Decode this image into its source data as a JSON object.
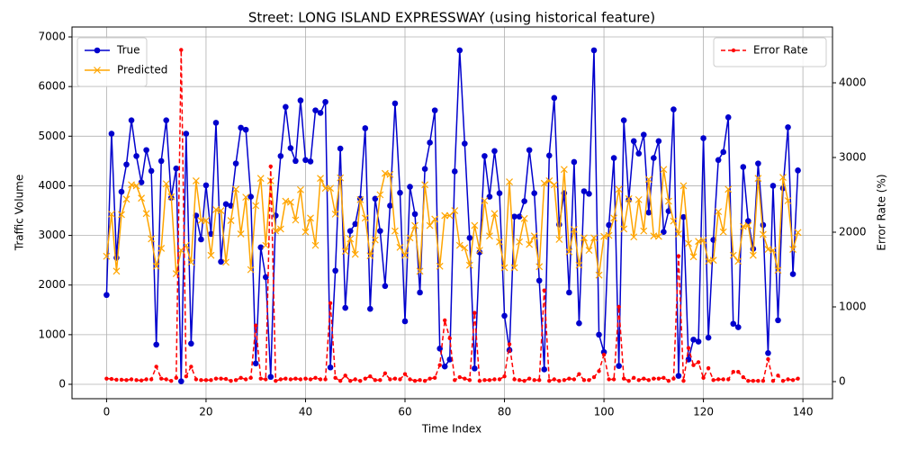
{
  "chart_data": {
    "type": "line",
    "title": "Street: LONG ISLAND EXPRESSWAY (using historical feature)",
    "x_label": "Time Index",
    "y_label": "Traffic Volume",
    "y2_label": "Error Rate (%)",
    "x": [
      0,
      1,
      2,
      3,
      4,
      5,
      6,
      7,
      8,
      9,
      10,
      11,
      12,
      13,
      14,
      15,
      16,
      17,
      18,
      19,
      20,
      21,
      22,
      23,
      24,
      25,
      26,
      27,
      28,
      29,
      30,
      31,
      32,
      33,
      34,
      35,
      36,
      37,
      38,
      39,
      40,
      41,
      42,
      43,
      44,
      45,
      46,
      47,
      48,
      49,
      50,
      51,
      52,
      53,
      54,
      55,
      56,
      57,
      58,
      59,
      60,
      61,
      62,
      63,
      64,
      65,
      66,
      67,
      68,
      69,
      70,
      71,
      72,
      73,
      74,
      75,
      76,
      77,
      78,
      79,
      80,
      81,
      82,
      83,
      84,
      85,
      86,
      87,
      88,
      89,
      90,
      91,
      92,
      93,
      94,
      95,
      96,
      97,
      98,
      99,
      100,
      101,
      102,
      103,
      104,
      105,
      106,
      107,
      108,
      109,
      110,
      111,
      112,
      113,
      114,
      115,
      116,
      117,
      118,
      119,
      120,
      121,
      122,
      123,
      124,
      125,
      126,
      127,
      128,
      129,
      130,
      131,
      132,
      133,
      134,
      135,
      136,
      137,
      138,
      139
    ],
    "series": [
      {
        "name": "True",
        "color": "#0000cd",
        "marker": "o",
        "linestyle": "solid",
        "values": [
          1800,
          5050,
          2550,
          3880,
          4430,
          5320,
          4600,
          4070,
          4720,
          4300,
          800,
          4500,
          5320,
          3760,
          4350,
          60,
          5050,
          820,
          3400,
          2920,
          4010,
          3030,
          5270,
          2470,
          3630,
          3600,
          4450,
          5170,
          5130,
          3780,
          420,
          2760,
          2160,
          150,
          3400,
          4600,
          5590,
          4760,
          4500,
          5720,
          4520,
          4490,
          5520,
          5470,
          5690,
          340,
          2290,
          4750,
          1540,
          3090,
          3230,
          3740,
          5160,
          1520,
          3740,
          3090,
          1980,
          3600,
          5660,
          3860,
          1270,
          3980,
          3430,
          1850,
          4340,
          4870,
          5520,
          720,
          360,
          500,
          4290,
          6730,
          4850,
          2950,
          320,
          2660,
          4600,
          3780,
          4700,
          3850,
          1380,
          690,
          3380,
          3380,
          3690,
          4720,
          3850,
          2090,
          300,
          4610,
          5770,
          3220,
          3850,
          1850,
          4480,
          1230,
          3890,
          3840,
          6730,
          1000,
          650,
          3210,
          4560,
          370,
          5320,
          3720,
          4900,
          4650,
          5030,
          3460,
          4560,
          4900,
          3070,
          3490,
          5540,
          170,
          3370,
          500,
          900,
          860,
          4960,
          940,
          2910,
          4520,
          4680,
          5380,
          1220,
          1150,
          4380,
          3290,
          2730,
          4450,
          3210,
          630,
          4000,
          1290,
          3950,
          5180,
          2220,
          4310
        ]
      },
      {
        "name": "Predicted",
        "color": "#ffa500",
        "marker": "x",
        "linestyle": "solid",
        "values": [
          2580,
          3430,
          2280,
          3420,
          3730,
          4020,
          4000,
          3750,
          3440,
          2930,
          2380,
          2740,
          4040,
          3780,
          2230,
          2700,
          2800,
          2460,
          4100,
          3300,
          3300,
          2600,
          3520,
          3500,
          2460,
          3300,
          3930,
          3030,
          3770,
          2310,
          3600,
          4150,
          2800,
          4100,
          3090,
          3130,
          3690,
          3670,
          3310,
          3920,
          3070,
          3350,
          2800,
          4150,
          3950,
          3950,
          3430,
          4160,
          2680,
          2930,
          2620,
          3720,
          3350,
          2590,
          2910,
          3820,
          4250,
          4230,
          3090,
          2760,
          2600,
          2950,
          3200,
          2280,
          4020,
          3200,
          3330,
          2380,
          3400,
          3400,
          3500,
          2800,
          2750,
          2400,
          3200,
          2700,
          3700,
          2990,
          3440,
          2870,
          2350,
          4080,
          2350,
          2870,
          3340,
          2820,
          2990,
          2370,
          4050,
          4100,
          4020,
          2920,
          4330,
          2670,
          3120,
          2400,
          2950,
          2700,
          2950,
          2200,
          2980,
          3000,
          3350,
          3930,
          3130,
          3740,
          2970,
          3720,
          3090,
          4130,
          2990,
          2980,
          4330,
          3690,
          3290,
          3030,
          4000,
          2840,
          2570,
          2880,
          2900,
          2480,
          2500,
          3480,
          3070,
          3930,
          2600,
          2480,
          3180,
          3200,
          2600,
          4150,
          3020,
          2720,
          2700,
          2300,
          4170,
          3700,
          2720,
          3060
        ]
      },
      {
        "name": "Error Rate",
        "color": "#ff0000",
        "marker": ".",
        "linestyle": "dashed",
        "axis": "y2",
        "values": [
          40,
          35,
          25,
          25,
          20,
          30,
          20,
          15,
          30,
          30,
          200,
          40,
          30,
          10,
          50,
          4440,
          70,
          200,
          30,
          20,
          20,
          20,
          40,
          40,
          35,
          10,
          20,
          50,
          30,
          50,
          750,
          40,
          30,
          2880,
          10,
          30,
          40,
          30,
          40,
          30,
          40,
          30,
          50,
          30,
          30,
          1050,
          50,
          10,
          80,
          10,
          30,
          10,
          40,
          70,
          20,
          20,
          110,
          30,
          40,
          30,
          100,
          30,
          10,
          20,
          10,
          40,
          50,
          220,
          820,
          580,
          20,
          60,
          40,
          20,
          920,
          10,
          20,
          20,
          30,
          30,
          70,
          500,
          30,
          20,
          10,
          40,
          20,
          20,
          1220,
          10,
          30,
          10,
          20,
          40,
          30,
          100,
          20,
          20,
          60,
          140,
          360,
          30,
          30,
          1000,
          40,
          10,
          50,
          20,
          40,
          20,
          40,
          40,
          50,
          10,
          40,
          1680,
          10,
          450,
          220,
          260,
          50,
          180,
          20,
          30,
          30,
          30,
          130,
          130,
          60,
          10,
          10,
          10,
          10,
          300,
          10,
          80,
          10,
          30,
          20,
          40
        ]
      }
    ],
    "xlim": [
      -6.95,
      145.95
    ],
    "xticks": [
      0,
      20,
      40,
      60,
      80,
      100,
      120,
      140
    ],
    "ylim": [
      -290,
      7200
    ],
    "yticks": [
      0,
      1000,
      2000,
      3000,
      4000,
      5000,
      6000,
      7000
    ],
    "y2lim": [
      -229,
      4747
    ],
    "y2ticks": [
      0,
      1000,
      2000,
      3000,
      4000
    ],
    "grid": true,
    "legend_loc": "upper left",
    "legend2_loc": "upper right"
  }
}
